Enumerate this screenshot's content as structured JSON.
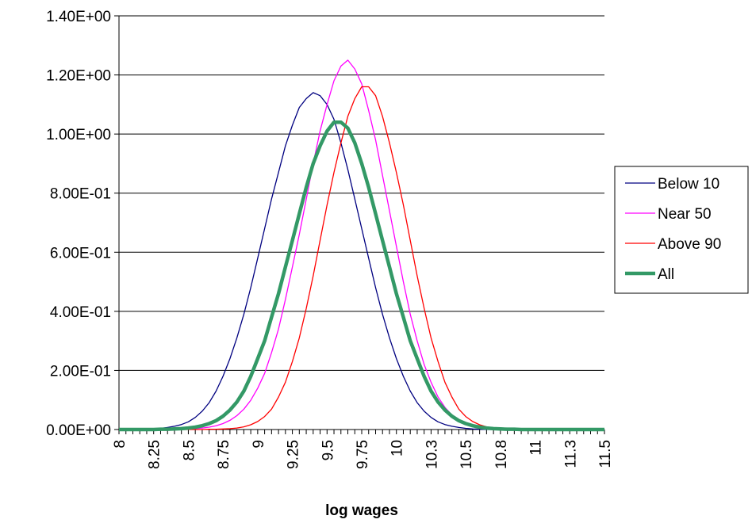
{
  "chart_data": {
    "type": "line",
    "title": "",
    "xlabel": "log wages",
    "ylabel": "",
    "x": [
      8.0,
      8.05,
      8.1,
      8.15,
      8.2,
      8.25,
      8.3,
      8.35,
      8.4,
      8.45,
      8.5,
      8.55,
      8.6,
      8.65,
      8.7,
      8.75,
      8.8,
      8.85,
      8.9,
      8.95,
      9.0,
      9.05,
      9.1,
      9.15,
      9.2,
      9.25,
      9.3,
      9.35,
      9.4,
      9.45,
      9.5,
      9.55,
      9.6,
      9.65,
      9.7,
      9.75,
      9.8,
      9.85,
      9.9,
      9.95,
      10.0,
      10.05,
      10.1,
      10.15,
      10.2,
      10.25,
      10.3,
      10.35,
      10.4,
      10.45,
      10.5,
      10.55,
      10.6,
      10.65,
      10.7,
      10.75,
      10.8,
      10.85,
      10.9,
      10.95,
      11.0,
      11.05,
      11.1,
      11.15,
      11.2,
      11.25,
      11.3,
      11.35,
      11.4,
      11.45,
      11.5
    ],
    "xtick_labels": [
      "8",
      "8.25",
      "8.5",
      "8.75",
      "9",
      "9.25",
      "9.5",
      "9.75",
      "10",
      "10.3",
      "10.5",
      "10.8",
      "11",
      "11.3",
      "11.5"
    ],
    "ylim": [
      0,
      1.4
    ],
    "ytick_labels": [
      "0.00E+00",
      "2.00E-01",
      "4.00E-01",
      "6.00E-01",
      "8.00E-01",
      "1.00E+00",
      "1.20E+00",
      "1.40E+00"
    ],
    "grid": "horizontal",
    "legend_position": "right",
    "series": [
      {
        "name": "Below 10",
        "color": "#000080",
        "width": "thin",
        "values": [
          0.0,
          0.0,
          0.0,
          0.0,
          0.001,
          0.002,
          0.004,
          0.007,
          0.011,
          0.017,
          0.026,
          0.041,
          0.062,
          0.091,
          0.13,
          0.18,
          0.24,
          0.31,
          0.39,
          0.48,
          0.58,
          0.68,
          0.78,
          0.87,
          0.96,
          1.03,
          1.09,
          1.12,
          1.14,
          1.13,
          1.1,
          1.05,
          0.97,
          0.88,
          0.78,
          0.68,
          0.58,
          0.48,
          0.39,
          0.31,
          0.24,
          0.18,
          0.13,
          0.091,
          0.062,
          0.041,
          0.026,
          0.017,
          0.011,
          0.007,
          0.004,
          0.002,
          0.001,
          0.0,
          0.0,
          0.0,
          0.0,
          0.0,
          0.0,
          0.0,
          0.0,
          0.0,
          0.0,
          0.0,
          0.0,
          0.0,
          0.0,
          0.0,
          0.0,
          0.0,
          0.0
        ]
      },
      {
        "name": "Near 50",
        "color": "#ff00ff",
        "width": "thin",
        "values": [
          0.0,
          0.0,
          0.0,
          0.0,
          0.0,
          0.0,
          0.0,
          0.0,
          0.001,
          0.001,
          0.002,
          0.003,
          0.005,
          0.008,
          0.013,
          0.02,
          0.031,
          0.047,
          0.069,
          0.099,
          0.14,
          0.19,
          0.26,
          0.34,
          0.44,
          0.55,
          0.66,
          0.78,
          0.9,
          1.01,
          1.1,
          1.18,
          1.23,
          1.25,
          1.22,
          1.17,
          1.08,
          0.98,
          0.86,
          0.74,
          0.62,
          0.5,
          0.39,
          0.3,
          0.22,
          0.16,
          0.11,
          0.075,
          0.049,
          0.031,
          0.019,
          0.012,
          0.007,
          0.004,
          0.002,
          0.001,
          0.001,
          0.0,
          0.0,
          0.0,
          0.0,
          0.0,
          0.0,
          0.0,
          0.0,
          0.0,
          0.0,
          0.0,
          0.0,
          0.0,
          0.0
        ]
      },
      {
        "name": "Above 90",
        "color": "#ff0000",
        "width": "thin",
        "values": [
          0.0,
          0.0,
          0.0,
          0.0,
          0.0,
          0.0,
          0.0,
          0.0,
          0.0,
          0.0,
          0.0,
          0.0,
          0.0,
          0.001,
          0.001,
          0.002,
          0.003,
          0.005,
          0.009,
          0.016,
          0.027,
          0.044,
          0.069,
          0.11,
          0.16,
          0.23,
          0.31,
          0.41,
          0.52,
          0.64,
          0.76,
          0.87,
          0.97,
          1.06,
          1.12,
          1.16,
          1.16,
          1.13,
          1.06,
          0.97,
          0.87,
          0.76,
          0.64,
          0.52,
          0.41,
          0.31,
          0.23,
          0.16,
          0.11,
          0.069,
          0.044,
          0.027,
          0.016,
          0.009,
          0.005,
          0.003,
          0.002,
          0.001,
          0.001,
          0.0,
          0.0,
          0.0,
          0.0,
          0.0,
          0.0,
          0.0,
          0.0,
          0.0,
          0.0,
          0.0,
          0.0
        ]
      },
      {
        "name": "All",
        "color": "#339966",
        "width": "thick",
        "values": [
          0.0,
          0.0,
          0.0,
          0.0,
          0.0,
          0.0,
          0.001,
          0.001,
          0.002,
          0.003,
          0.005,
          0.008,
          0.013,
          0.02,
          0.03,
          0.045,
          0.066,
          0.093,
          0.13,
          0.18,
          0.24,
          0.3,
          0.38,
          0.46,
          0.55,
          0.64,
          0.73,
          0.82,
          0.9,
          0.96,
          1.01,
          1.04,
          1.04,
          1.02,
          0.97,
          0.9,
          0.82,
          0.73,
          0.64,
          0.55,
          0.46,
          0.38,
          0.3,
          0.24,
          0.18,
          0.13,
          0.093,
          0.066,
          0.045,
          0.03,
          0.02,
          0.013,
          0.008,
          0.005,
          0.003,
          0.002,
          0.001,
          0.001,
          0.0,
          0.0,
          0.0,
          0.0,
          0.0,
          0.0,
          0.0,
          0.0,
          0.0,
          0.0,
          0.0,
          0.0,
          0.0
        ]
      }
    ]
  }
}
